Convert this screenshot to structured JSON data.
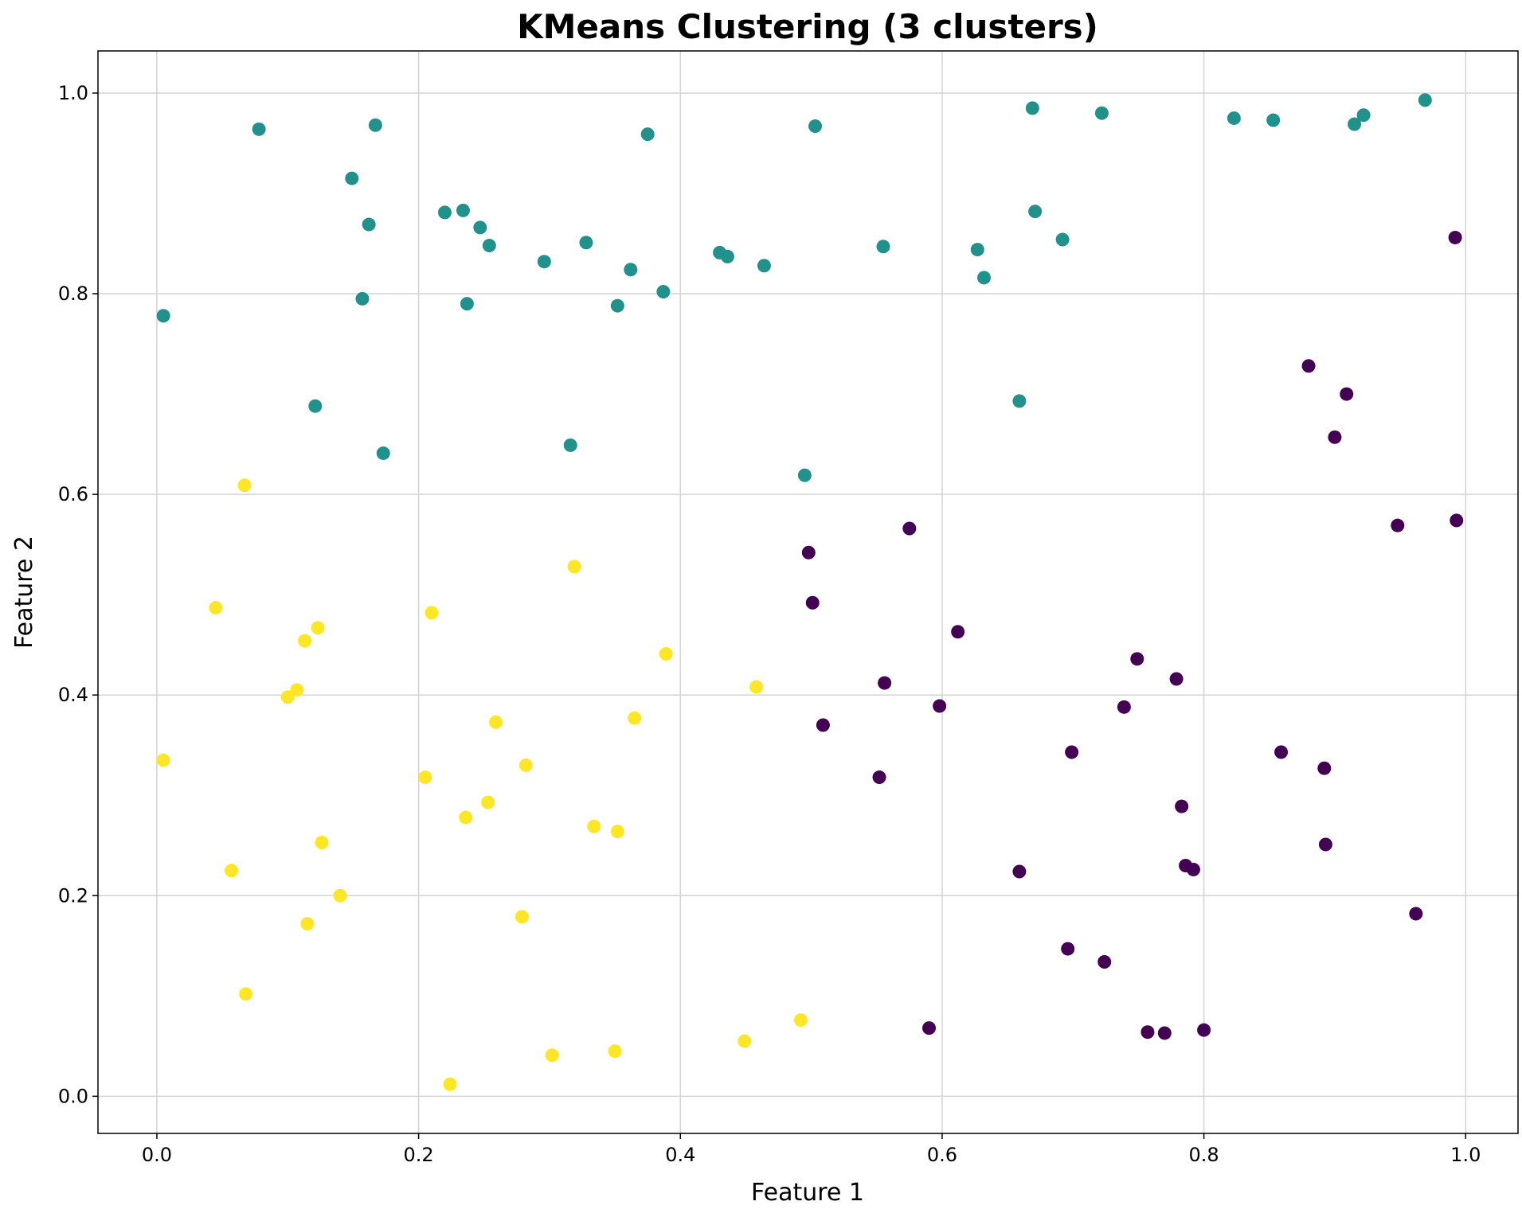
{
  "chart_data": {
    "type": "scatter",
    "title": "KMeans Clustering (3 clusters)",
    "xlabel": "Feature 1",
    "ylabel": "Feature 2",
    "xlim": [
      -0.045,
      1.04
    ],
    "ylim": [
      -0.037,
      1.042
    ],
    "xticks": [
      "0.0",
      "0.2",
      "0.4",
      "0.6",
      "0.8",
      "1.0"
    ],
    "yticks": [
      "0.0",
      "0.2",
      "0.4",
      "0.6",
      "0.8",
      "1.0"
    ],
    "grid": true,
    "series": [
      {
        "color": "#21918c",
        "points": [
          [
            0.005,
            0.778
          ],
          [
            0.078,
            0.964
          ],
          [
            0.121,
            0.688
          ],
          [
            0.149,
            0.915
          ],
          [
            0.157,
            0.795
          ],
          [
            0.162,
            0.869
          ],
          [
            0.167,
            0.968
          ],
          [
            0.173,
            0.641
          ],
          [
            0.22,
            0.881
          ],
          [
            0.234,
            0.883
          ],
          [
            0.237,
            0.79
          ],
          [
            0.247,
            0.866
          ],
          [
            0.254,
            0.848
          ],
          [
            0.296,
            0.832
          ],
          [
            0.316,
            0.649
          ],
          [
            0.328,
            0.851
          ],
          [
            0.352,
            0.788
          ],
          [
            0.362,
            0.824
          ],
          [
            0.375,
            0.959
          ],
          [
            0.387,
            0.802
          ],
          [
            0.43,
            0.841
          ],
          [
            0.436,
            0.837
          ],
          [
            0.464,
            0.828
          ],
          [
            0.495,
            0.619
          ],
          [
            0.503,
            0.967
          ],
          [
            0.555,
            0.847
          ],
          [
            0.627,
            0.844
          ],
          [
            0.632,
            0.816
          ],
          [
            0.659,
            0.693
          ],
          [
            0.669,
            0.985
          ],
          [
            0.671,
            0.882
          ],
          [
            0.692,
            0.854
          ],
          [
            0.722,
            0.98
          ],
          [
            0.823,
            0.975
          ],
          [
            0.853,
            0.973
          ],
          [
            0.915,
            0.969
          ],
          [
            0.922,
            0.978
          ],
          [
            0.969,
            0.993
          ]
        ]
      },
      {
        "color": "#440154",
        "points": [
          [
            0.498,
            0.542
          ],
          [
            0.501,
            0.492
          ],
          [
            0.509,
            0.37
          ],
          [
            0.552,
            0.318
          ],
          [
            0.556,
            0.412
          ],
          [
            0.575,
            0.566
          ],
          [
            0.59,
            0.068
          ],
          [
            0.598,
            0.389
          ],
          [
            0.612,
            0.463
          ],
          [
            0.659,
            0.224
          ],
          [
            0.696,
            0.147
          ],
          [
            0.699,
            0.343
          ],
          [
            0.724,
            0.134
          ],
          [
            0.739,
            0.388
          ],
          [
            0.749,
            0.436
          ],
          [
            0.757,
            0.064
          ],
          [
            0.77,
            0.063
          ],
          [
            0.779,
            0.416
          ],
          [
            0.783,
            0.289
          ],
          [
            0.786,
            0.23
          ],
          [
            0.792,
            0.226
          ],
          [
            0.8,
            0.066
          ],
          [
            0.859,
            0.343
          ],
          [
            0.88,
            0.728
          ],
          [
            0.892,
            0.327
          ],
          [
            0.893,
            0.251
          ],
          [
            0.9,
            0.657
          ],
          [
            0.909,
            0.7
          ],
          [
            0.948,
            0.569
          ],
          [
            0.962,
            0.182
          ],
          [
            0.992,
            0.856
          ],
          [
            0.993,
            0.574
          ]
        ]
      },
      {
        "color": "#fde725",
        "points": [
          [
            0.005,
            0.335
          ],
          [
            0.045,
            0.487
          ],
          [
            0.057,
            0.225
          ],
          [
            0.067,
            0.609
          ],
          [
            0.068,
            0.102
          ],
          [
            0.1,
            0.398
          ],
          [
            0.107,
            0.405
          ],
          [
            0.113,
            0.454
          ],
          [
            0.115,
            0.172
          ],
          [
            0.123,
            0.467
          ],
          [
            0.126,
            0.253
          ],
          [
            0.14,
            0.2
          ],
          [
            0.205,
            0.318
          ],
          [
            0.21,
            0.482
          ],
          [
            0.224,
            0.012
          ],
          [
            0.236,
            0.278
          ],
          [
            0.253,
            0.293
          ],
          [
            0.259,
            0.373
          ],
          [
            0.279,
            0.179
          ],
          [
            0.282,
            0.33
          ],
          [
            0.302,
            0.041
          ],
          [
            0.319,
            0.528
          ],
          [
            0.334,
            0.269
          ],
          [
            0.35,
            0.045
          ],
          [
            0.352,
            0.264
          ],
          [
            0.365,
            0.377
          ],
          [
            0.389,
            0.441
          ],
          [
            0.449,
            0.055
          ],
          [
            0.458,
            0.408
          ],
          [
            0.492,
            0.076
          ]
        ]
      }
    ]
  }
}
